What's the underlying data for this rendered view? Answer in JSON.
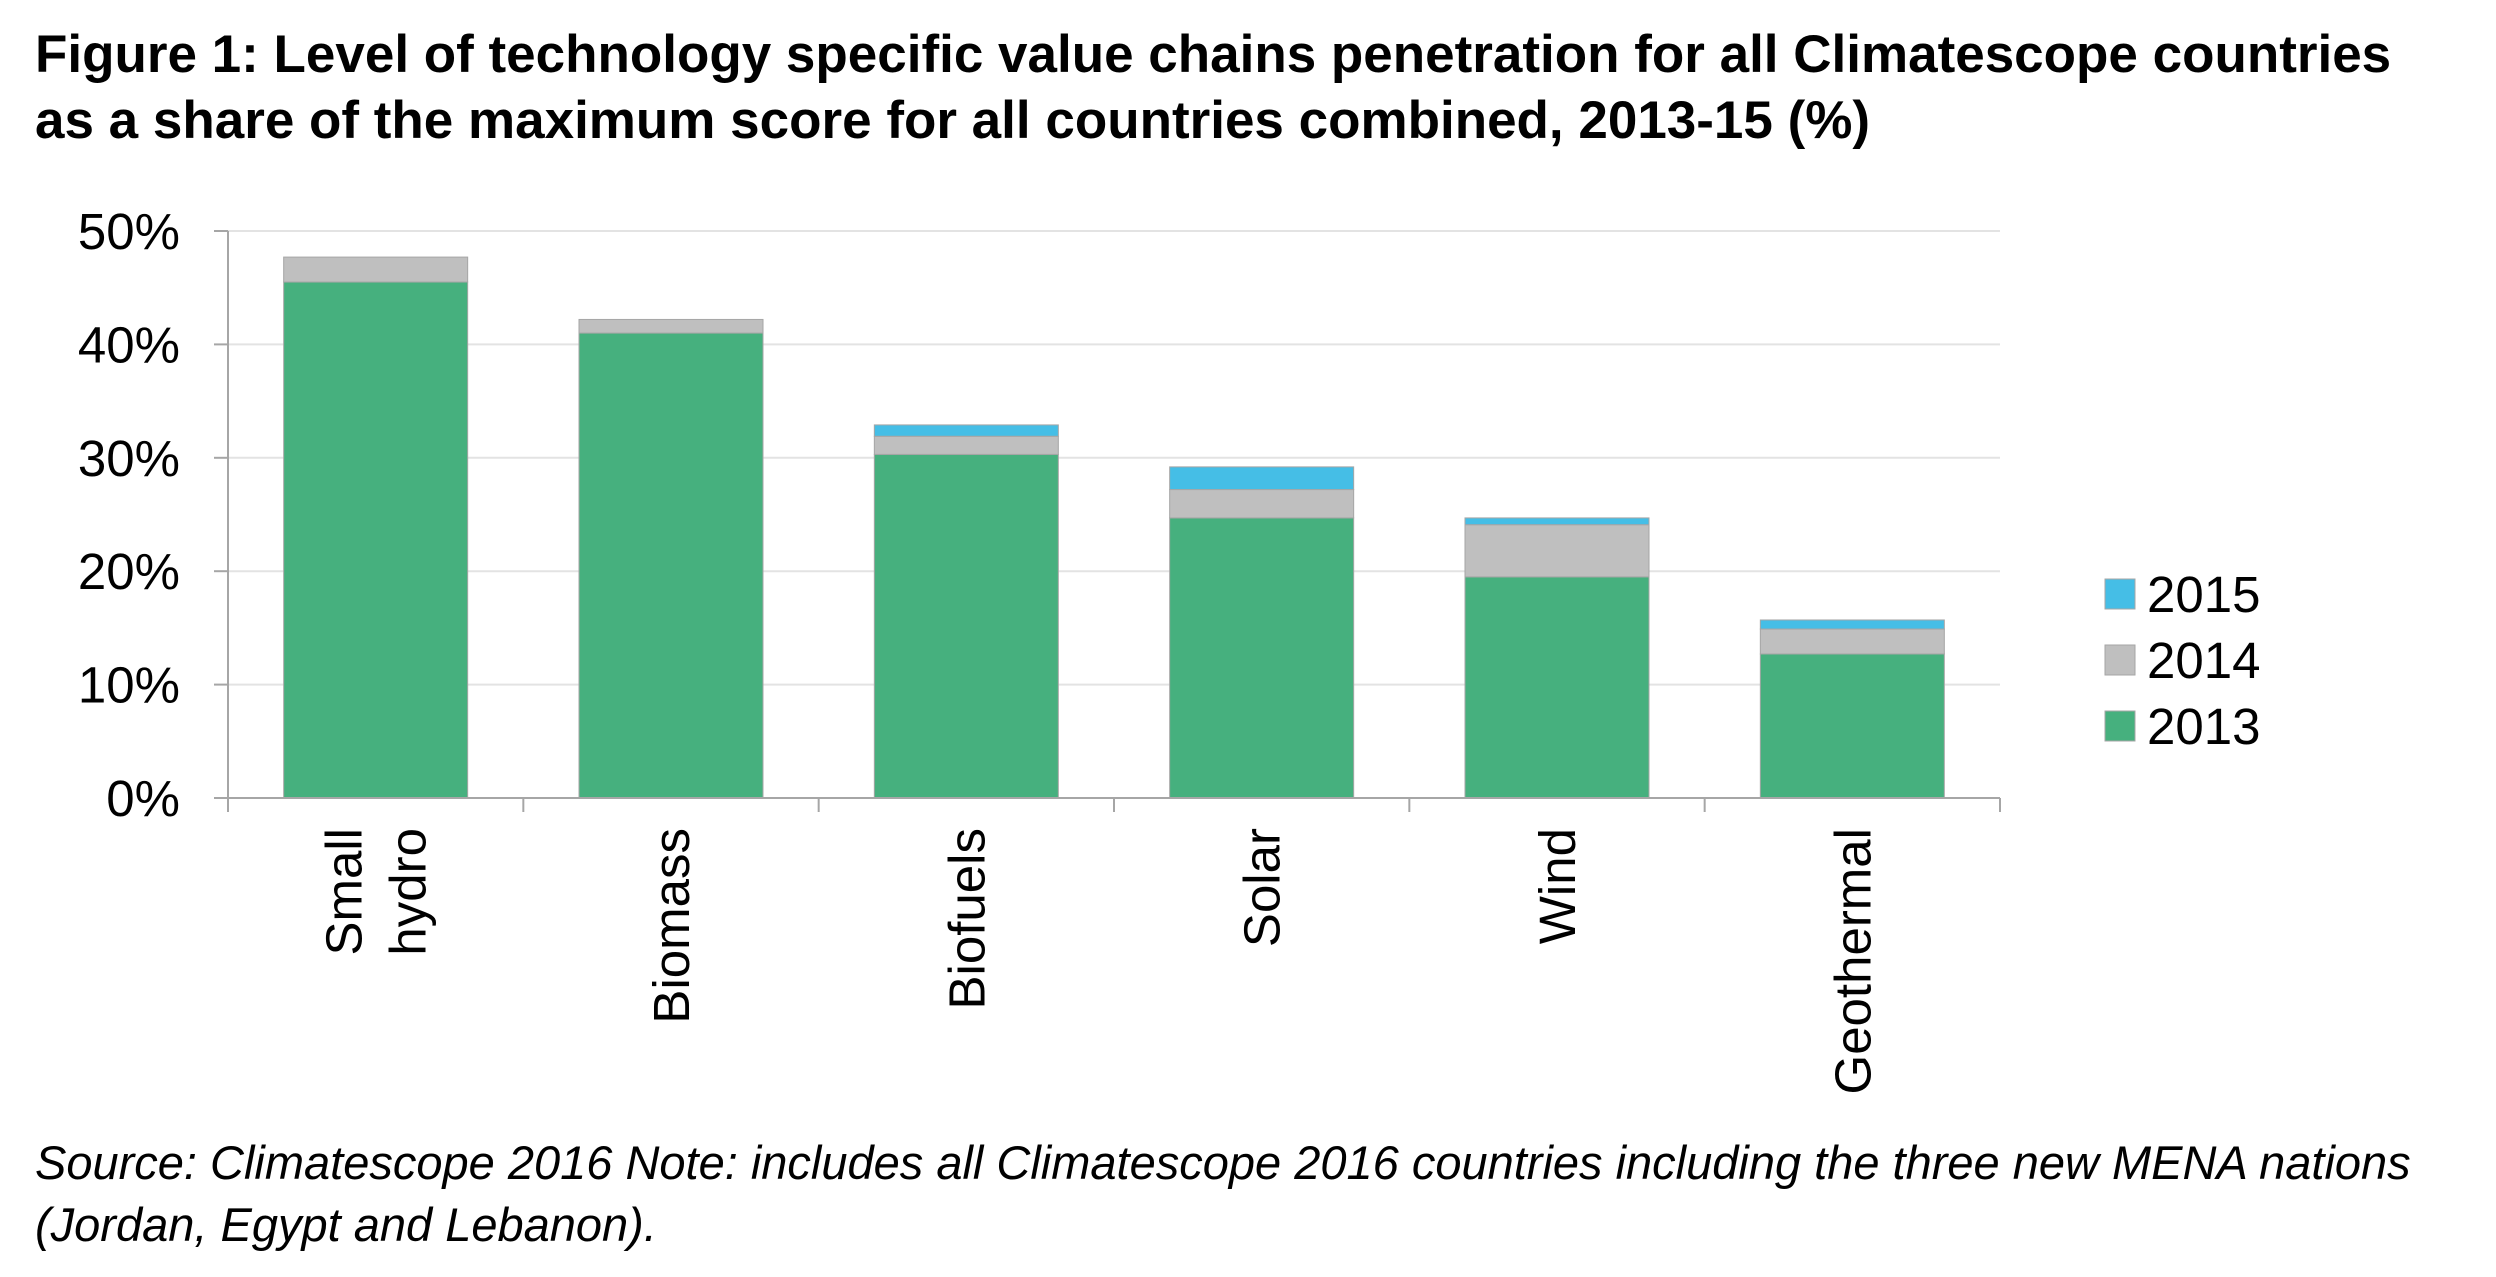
{
  "title": "Figure 1: Level of technology specific value chains penetration for all Climatescope countries as a share of the maximum score for all countries combined, 2013-15 (%)",
  "source_note": "Source: Climatescope 2016 Note: includes all Climatescope 2016 countries including the three new MENA nations (Jordan, Egypt and Lebanon).",
  "colors": {
    "2013": "#46b07e",
    "2014": "#bfbfbf",
    "2015": "#45bee6",
    "gridline": "#e3e3e3",
    "axis": "#a6a6a6"
  },
  "chart_data": {
    "type": "bar",
    "stacked": true,
    "categories": [
      [
        "Small",
        "hydro"
      ],
      [
        "Biomass"
      ],
      [
        "Biofuels"
      ],
      [
        "Solar"
      ],
      [
        "Wind"
      ],
      [
        "Geothermal"
      ]
    ],
    "series": [
      {
        "name": "2013",
        "values": [
          45.5,
          41.0,
          30.3,
          24.7,
          19.5,
          12.7
        ]
      },
      {
        "name": "2014",
        "values": [
          2.2,
          1.2,
          1.6,
          2.5,
          4.6,
          2.2
        ]
      },
      {
        "name": "2015",
        "values": [
          0.0,
          0.0,
          1.0,
          2.0,
          0.6,
          0.8
        ]
      }
    ],
    "ylim": [
      0,
      50
    ],
    "yticks": [
      0,
      10,
      20,
      30,
      40,
      50
    ],
    "ytick_format": "%",
    "grid": true,
    "legend": {
      "position": "right",
      "entries": [
        "2015",
        "2014",
        "2013"
      ]
    }
  }
}
